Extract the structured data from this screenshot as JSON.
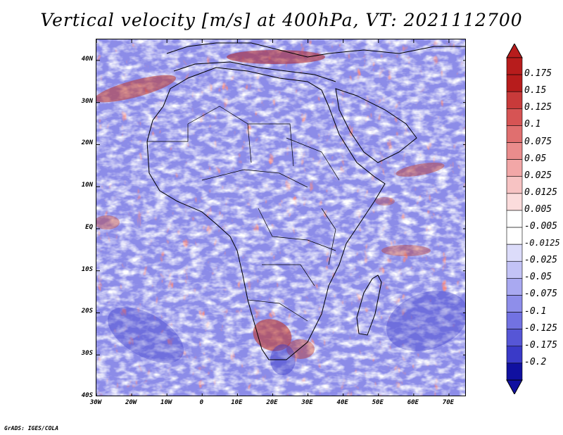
{
  "title": "Vertical velocity [m/s] at 400hPa, VT: 2021112700",
  "footer": "GrADS: IGES/COLA",
  "map": {
    "projection": "lat-lon",
    "lon_range": [
      -30,
      75
    ],
    "lat_range": [
      -40,
      45
    ],
    "lat_ticks": [
      {
        "value": 40,
        "label": "40N"
      },
      {
        "value": 30,
        "label": "30N"
      },
      {
        "value": 20,
        "label": "20N"
      },
      {
        "value": 10,
        "label": "10N"
      },
      {
        "value": 0,
        "label": "EQ"
      },
      {
        "value": -10,
        "label": "10S"
      },
      {
        "value": -20,
        "label": "20S"
      },
      {
        "value": -30,
        "label": "30S"
      },
      {
        "value": -40,
        "label": "40S"
      }
    ],
    "lon_ticks": [
      {
        "value": -30,
        "label": "30W"
      },
      {
        "value": -20,
        "label": "20W"
      },
      {
        "value": -10,
        "label": "10W"
      },
      {
        "value": 0,
        "label": "0"
      },
      {
        "value": 10,
        "label": "10E"
      },
      {
        "value": 20,
        "label": "20E"
      },
      {
        "value": 30,
        "label": "30E"
      },
      {
        "value": 40,
        "label": "40E"
      },
      {
        "value": 50,
        "label": "50E"
      },
      {
        "value": 60,
        "label": "60E"
      },
      {
        "value": 70,
        "label": "70E"
      }
    ]
  },
  "colorbar": {
    "levels": [
      {
        "label": "0.175",
        "color": "#b71c1c"
      },
      {
        "label": "0.15",
        "color": "#c83a3a"
      },
      {
        "label": "0.125",
        "color": "#d65454"
      },
      {
        "label": "0.1",
        "color": "#e06f6f"
      },
      {
        "label": "0.075",
        "color": "#ea8c8c"
      },
      {
        "label": "0.05",
        "color": "#f2a7a7"
      },
      {
        "label": "0.025",
        "color": "#f7c3c3"
      },
      {
        "label": "0.0125",
        "color": "#fbdcdc"
      },
      {
        "label": "0.005",
        "color": "#ffffff"
      },
      {
        "label": "-0.005",
        "color": "#ffffff"
      },
      {
        "label": "-0.0125",
        "color": "#dcdcfa"
      },
      {
        "label": "-0.025",
        "color": "#c3c3f6"
      },
      {
        "label": "-0.05",
        "color": "#a9a9f1"
      },
      {
        "label": "-0.075",
        "color": "#8e8eea"
      },
      {
        "label": "-0.1",
        "color": "#7272e2"
      },
      {
        "label": "-0.125",
        "color": "#5656d6"
      },
      {
        "label": "-0.175",
        "color": "#3a3ac8"
      },
      {
        "label": "-0.2",
        "color": "#1c1cb0"
      }
    ],
    "top_color": "#b71c1c",
    "bottom_color": "#1010a0"
  }
}
